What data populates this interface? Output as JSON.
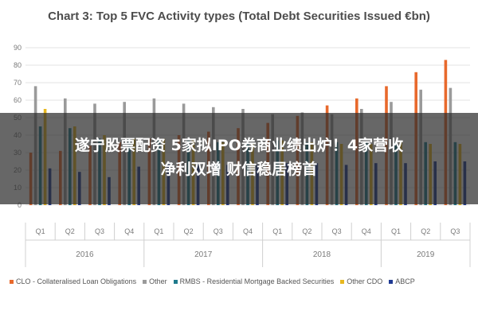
{
  "chart_data": {
    "type": "bar",
    "title": "Chart 3: Top 5 FVC Activity types (Total Debt Securities Issued €bn)",
    "xlabel": "",
    "ylabel": "",
    "ylim": [
      0,
      90
    ],
    "yticks": [
      0,
      10,
      20,
      30,
      40,
      50,
      60,
      70,
      80,
      90
    ],
    "grid": true,
    "legend_position": "bottom",
    "categories": [
      "Q1",
      "Q2",
      "Q3",
      "Q4",
      "Q1",
      "Q2",
      "Q3",
      "Q4",
      "Q1",
      "Q2",
      "Q3",
      "Q4",
      "Q1",
      "Q2",
      "Q3"
    ],
    "years": [
      {
        "label": "2016",
        "span": 4
      },
      {
        "label": "2017",
        "span": 4
      },
      {
        "label": "2018",
        "span": 4
      },
      {
        "label": "2019",
        "span": 3
      }
    ],
    "series": [
      {
        "name": "CLO - Collateralised Loan Obligations",
        "color": "#e8692c",
        "values": [
          30,
          31,
          34,
          36,
          38,
          40,
          42,
          44,
          47,
          51,
          57,
          61,
          68,
          76,
          83
        ]
      },
      {
        "name": "Other",
        "color": "#9a9a9a",
        "values": [
          68,
          61,
          58,
          59,
          61,
          58,
          56,
          55,
          52,
          53,
          52,
          55,
          59,
          66,
          67
        ]
      },
      {
        "name": "RMBS - Residential Mortgage Backed Securities",
        "color": "#1f7a8c",
        "values": [
          45,
          44,
          38,
          38,
          37,
          37,
          36,
          36,
          37,
          36,
          36,
          36,
          36,
          36,
          36
        ]
      },
      {
        "name": "Other CDO",
        "color": "#e8b81f",
        "values": [
          55,
          45,
          40,
          38,
          38,
          37,
          36,
          35,
          37,
          36,
          35,
          35,
          36,
          35,
          35
        ]
      },
      {
        "name": "ABCP",
        "color": "#1f3a93",
        "values": [
          21,
          19,
          16,
          22,
          24,
          24,
          23,
          23,
          24,
          24,
          23,
          24,
          24,
          25,
          25
        ]
      }
    ]
  },
  "overlay": {
    "line1": "遂宁股票配资 5家拟IPO券商业绩出炉！4家营收",
    "line2": "净利双增 财信稳居榜首"
  }
}
